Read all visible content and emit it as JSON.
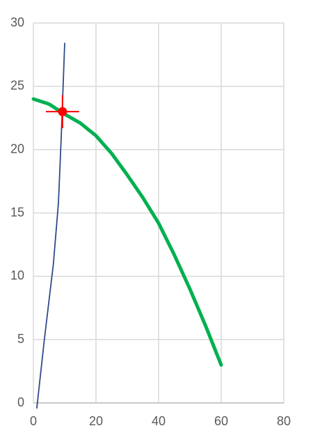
{
  "chart_data": {
    "type": "scatter",
    "xlim": [
      0,
      80
    ],
    "xticks": [
      0,
      20,
      40,
      60,
      80
    ],
    "ylim": [
      0,
      30
    ],
    "yticks": [
      0,
      5,
      10,
      15,
      20,
      25,
      30
    ],
    "grid": true,
    "series": [
      {
        "color": "#00b050",
        "line": true,
        "x": [
          0,
          5,
          10,
          15,
          20,
          25,
          30,
          35,
          40,
          45,
          50,
          55,
          60
        ],
        "values": [
          24,
          23.6,
          22.8,
          22.1,
          21.1,
          19.7,
          18.0,
          16.2,
          14.2,
          11.7,
          9.0,
          6.1,
          3.0
        ]
      },
      {
        "color": "#2f4b8a",
        "line": true,
        "x": [
          1.1,
          3.5,
          6.4,
          8.0,
          8.9,
          10.0
        ],
        "values": [
          -0.4,
          5.0,
          11.0,
          15.8,
          21.0,
          28.4
        ]
      },
      {
        "color": "#ff0000",
        "line": false,
        "x": [
          9.3
        ],
        "values": [
          23.0
        ],
        "x_error": [
          5.3
        ],
        "y_error": [
          1.3
        ]
      }
    ]
  }
}
